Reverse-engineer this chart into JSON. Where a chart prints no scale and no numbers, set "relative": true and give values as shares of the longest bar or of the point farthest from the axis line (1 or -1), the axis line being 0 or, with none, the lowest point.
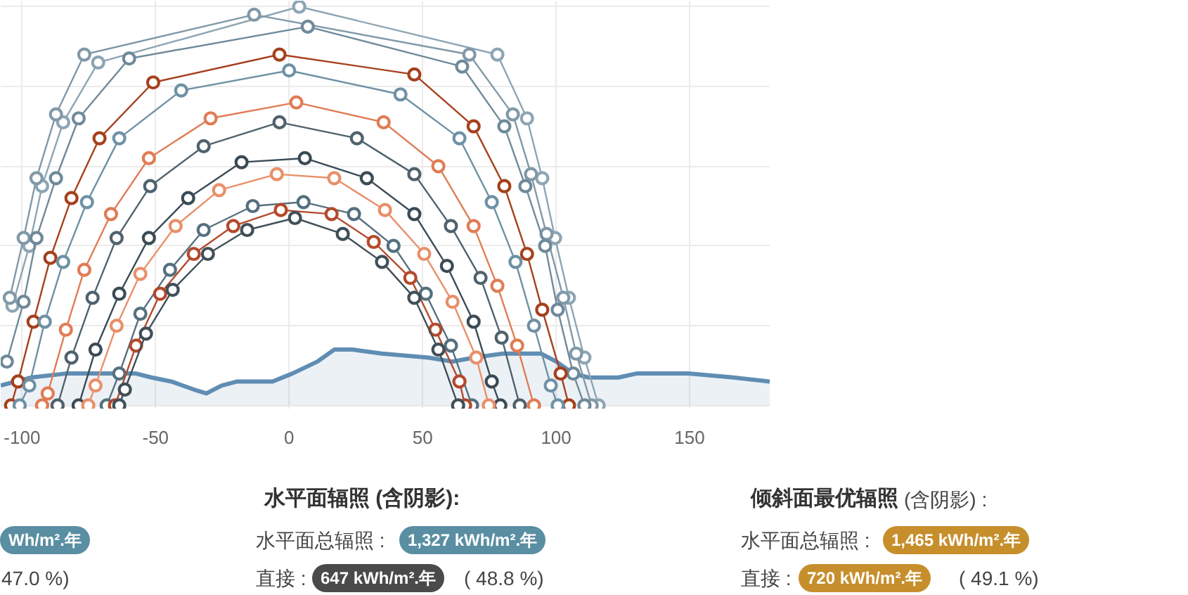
{
  "chart_data": {
    "type": "line",
    "relative": true,
    "marker": "circle",
    "grid": true,
    "xlim": [
      -108,
      180
    ],
    "xticks": [
      -100,
      -50,
      0,
      50,
      100,
      150
    ],
    "series": [
      {
        "type": "area",
        "marker": "none",
        "color": "#5f8db3",
        "x": [
          -108,
          -96.7,
          -83.6,
          -70.4,
          -57.3,
          -51.5,
          -44.1,
          -35.7,
          -31.0,
          -25.2,
          -19.4,
          -6.2,
          1.2,
          10.6,
          16.9,
          23.8,
          34.8,
          52.2,
          61.2,
          69.1,
          80.1,
          94.3,
          100.1,
          106.4,
          112.2,
          123.3,
          130.1,
          149.6,
          166.4,
          180
        ],
        "values": [
          0.05,
          0.07,
          0.08,
          0.08,
          0.08,
          0.07,
          0.06,
          0.04,
          0.03,
          0.05,
          0.06,
          0.06,
          0.08,
          0.11,
          0.14,
          0.14,
          0.13,
          0.12,
          0.11,
          0.12,
          0.13,
          0.13,
          0.11,
          0.08,
          0.07,
          0.07,
          0.08,
          0.08,
          0.07,
          0.06
        ]
      },
      {
        "color": "#8da5b3",
        "x": [
          -103.6,
          -97.3,
          -92.5,
          -84.6,
          -71.5,
          3.8,
          78.0,
          89.1,
          94.8,
          99.6,
          104.8,
          110.6,
          115.9
        ],
        "values": [
          0.25,
          0.4,
          0.55,
          0.71,
          0.86,
          1.0,
          0.88,
          0.72,
          0.57,
          0.42,
          0.27,
          0.12,
          0.0
        ]
      },
      {
        "color": "#8199a8",
        "x": [
          -104.6,
          -99.4,
          -94.6,
          -87.3,
          -76.7,
          -13.1,
          67.5,
          83.8,
          90.6,
          96.4,
          102.7,
          107.5,
          113.3
        ],
        "values": [
          0.27,
          0.42,
          0.57,
          0.73,
          0.88,
          0.98,
          0.88,
          0.73,
          0.58,
          0.43,
          0.27,
          0.13,
          0.0
        ]
      },
      {
        "color": "#6f8a9a",
        "x": [
          -105.7,
          -99.4,
          -94.6,
          -87.3,
          -78.8,
          -59.9,
          7.0,
          64.8,
          80.6,
          88.5,
          95.9,
          100.6,
          106.4,
          110.6
        ],
        "values": [
          0.11,
          0.26,
          0.42,
          0.57,
          0.72,
          0.87,
          0.95,
          0.85,
          0.7,
          0.55,
          0.4,
          0.24,
          0.08,
          0.0
        ]
      },
      {
        "color": "#a5401d",
        "x": [
          -104.1,
          -101.5,
          -95.7,
          -89.4,
          -81.5,
          -71.0,
          -50.9,
          -3.6,
          46.9,
          69.1,
          80.6,
          89.1,
          94.8,
          101.7,
          104.8
        ],
        "values": [
          0.0,
          0.06,
          0.21,
          0.37,
          0.52,
          0.67,
          0.81,
          0.88,
          0.83,
          0.7,
          0.55,
          0.38,
          0.24,
          0.08,
          0.0
        ]
      },
      {
        "color": "#6e91a5",
        "x": [
          -100.9,
          -97.3,
          -91.5,
          -84.6,
          -75.7,
          -63.6,
          -40.4,
          0,
          41.7,
          63.8,
          75.9,
          84.8,
          91.7,
          98.0,
          100.6
        ],
        "values": [
          0.0,
          0.05,
          0.21,
          0.36,
          0.51,
          0.67,
          0.79,
          0.84,
          0.78,
          0.67,
          0.51,
          0.36,
          0.2,
          0.05,
          0.0
        ]
      },
      {
        "color": "#e07c55",
        "x": [
          -92.5,
          -90.4,
          -83.6,
          -76.7,
          -66.7,
          -52.5,
          -29.4,
          2.7,
          35.4,
          55.9,
          69.1,
          78.0,
          85.4,
          91.7
        ],
        "values": [
          0.0,
          0.03,
          0.19,
          0.34,
          0.48,
          0.62,
          0.72,
          0.76,
          0.71,
          0.6,
          0.45,
          0.3,
          0.15,
          0.0
        ]
      },
      {
        "color": "#4f626d",
        "x": [
          -86.7,
          -81.5,
          -73.6,
          -64.6,
          -52.0,
          -32.0,
          -3.6,
          25.4,
          46.9,
          60.6,
          71.7,
          79.6,
          86.4
        ],
        "values": [
          0.0,
          0.12,
          0.27,
          0.42,
          0.55,
          0.65,
          0.71,
          0.67,
          0.58,
          0.45,
          0.32,
          0.17,
          0.0
        ]
      },
      {
        "color": "#3b4b55",
        "x": [
          -78.8,
          -72.5,
          -63.6,
          -52.5,
          -37.8,
          -17.8,
          5.9,
          29.1,
          46.9,
          59.1,
          69.1,
          75.9,
          79.1
        ],
        "values": [
          0.0,
          0.14,
          0.28,
          0.42,
          0.52,
          0.61,
          0.62,
          0.57,
          0.48,
          0.35,
          0.21,
          0.06,
          0.0
        ]
      },
      {
        "color": "#e8906a",
        "x": [
          -75.2,
          -72.5,
          -64.6,
          -55.7,
          -42.5,
          -26.2,
          -4.6,
          16.9,
          35.9,
          50.6,
          61.2,
          70.1,
          74.8
        ],
        "values": [
          0.0,
          0.05,
          0.2,
          0.33,
          0.45,
          0.54,
          0.58,
          0.57,
          0.49,
          0.38,
          0.26,
          0.12,
          0.0
        ]
      },
      {
        "color": "#55707f",
        "x": [
          -68.3,
          -63.6,
          -55.7,
          -44.6,
          -32.0,
          -13.6,
          5.4,
          24.3,
          39.1,
          51.2,
          60.6,
          68.5
        ],
        "values": [
          0.0,
          0.08,
          0.23,
          0.34,
          0.44,
          0.5,
          0.51,
          0.48,
          0.4,
          0.28,
          0.15,
          0.0
        ]
      },
      {
        "color": "#b4492b",
        "x": [
          -65.2,
          -57.3,
          -48.3,
          -35.7,
          -20.9,
          -3.1,
          15.9,
          31.7,
          45.4,
          54.8,
          63.8,
          65.9
        ],
        "values": [
          0.0,
          0.15,
          0.28,
          0.38,
          0.45,
          0.49,
          0.48,
          0.41,
          0.32,
          0.19,
          0.06,
          0.0
        ]
      },
      {
        "color": "#414f58",
        "x": [
          -63.6,
          -61.5,
          -53.6,
          -43.6,
          -30.4,
          -15.7,
          2.2,
          20.1,
          34.8,
          46.9,
          55.9,
          63.3
        ],
        "values": [
          0.0,
          0.04,
          0.18,
          0.29,
          0.38,
          0.44,
          0.47,
          0.43,
          0.36,
          0.27,
          0.14,
          0.0
        ]
      }
    ],
    "annotations": [
      "Wh/m².年",
      "47.0 %)",
      "水平面辐照 (含阴影):",
      "水平面总辐照 :",
      "1,327 kWh/m².年",
      "直接 :",
      "647 kWh/m².年",
      "( 48.8 %)",
      "倾斜面最优辐照",
      "(含阴影) :",
      "水平面总辐照 :",
      "1,465 kWh/m².年",
      "直接 :",
      "720 kWh/m².年",
      "( 49.1 %)"
    ]
  }
}
